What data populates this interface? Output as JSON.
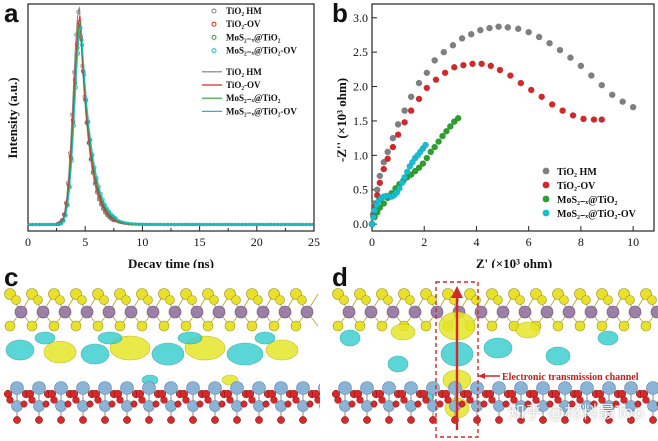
{
  "labels": {
    "a": "a",
    "b": "b",
    "c": "c",
    "d": "d"
  },
  "colors": {
    "tio2_hm": "#7f7f7f",
    "tio2_ov": "#d62728",
    "mos2_tio2": "#2ca02c",
    "mos2_tio2_ov": "#17becf",
    "yellow_lobe": "#e6e62a",
    "cyan_lobe": "#3fcfcf",
    "sulfur": "#e8e02a",
    "molybdenum": "#9b7fa6",
    "titanium": "#8ab4d6",
    "oxygen": "#d42a2a"
  },
  "chart_data": [
    {
      "type": "line",
      "panel": "a",
      "title": "",
      "xlabel": "Decay time (ns)",
      "ylabel": "Intensity (a.u.)",
      "xlim": [
        0,
        25
      ],
      "ylim": [
        0,
        1.05
      ],
      "xticks": [
        "0",
        "5",
        "10",
        "15",
        "20",
        "25"
      ],
      "series": [
        {
          "name": "TiO₂ HM",
          "style": "markers",
          "peak": 1.0,
          "center": 4.5,
          "rise": 0.55,
          "decay": 0.85
        },
        {
          "name": "TiO₂-OV",
          "style": "markers",
          "peak": 0.95,
          "center": 4.55,
          "rise": 0.55,
          "decay": 0.9
        },
        {
          "name": "MoS₂₋ₓ@TiO₂",
          "style": "markers",
          "peak": 0.93,
          "center": 4.6,
          "rise": 0.55,
          "decay": 0.95
        },
        {
          "name": "MoS₂₋ₓ@TiO₂-OV",
          "style": "markers",
          "peak": 0.9,
          "center": 4.65,
          "rise": 0.55,
          "decay": 1.0
        },
        {
          "name": "TiO₂ HM",
          "style": "line",
          "peak": 1.0,
          "center": 4.5,
          "rise": 0.55,
          "decay": 0.85
        },
        {
          "name": "TiO₂-OV",
          "style": "line",
          "peak": 0.96,
          "center": 4.55,
          "rise": 0.55,
          "decay": 0.9
        },
        {
          "name": "MoS₂₋ₓ@TiO₂",
          "style": "line",
          "peak": 0.94,
          "center": 4.6,
          "rise": 0.55,
          "decay": 0.95
        },
        {
          "name": "MoS₂₋ₓ@TiO₂-OV",
          "style": "line",
          "peak": 0.92,
          "center": 4.65,
          "rise": 0.55,
          "decay": 1.0
        }
      ],
      "baseline": 0.03
    },
    {
      "type": "scatter",
      "panel": "b",
      "title": "",
      "xlabel": "Z' (×10³ ohm)",
      "ylabel": "-Z'' (×10³ ohm)",
      "xlim": [
        0,
        10.8
      ],
      "ylim": [
        -0.1,
        3.2
      ],
      "xticks": [
        0,
        2,
        4,
        6,
        8,
        10
      ],
      "yticks": [
        "0.0",
        "0.5",
        "1.0",
        "1.5",
        "2.0",
        "2.5",
        "3.0"
      ],
      "series": [
        {
          "name": "TiO₂ HM",
          "x": [
            0.0,
            0.05,
            0.1,
            0.2,
            0.3,
            0.45,
            0.6,
            0.8,
            1.0,
            1.25,
            1.5,
            1.8,
            2.1,
            2.4,
            2.75,
            3.1,
            3.45,
            3.8,
            4.15,
            4.5,
            4.85,
            5.2,
            5.6,
            6.0,
            6.4,
            6.8,
            7.2,
            7.6,
            8.0,
            8.4,
            8.8,
            9.2,
            9.6,
            10.0
          ],
          "y": [
            0.0,
            0.15,
            0.3,
            0.5,
            0.7,
            0.9,
            1.05,
            1.25,
            1.45,
            1.65,
            1.85,
            2.05,
            2.2,
            2.38,
            2.5,
            2.6,
            2.7,
            2.76,
            2.82,
            2.85,
            2.87,
            2.86,
            2.84,
            2.79,
            2.72,
            2.63,
            2.53,
            2.42,
            2.3,
            2.16,
            2.02,
            1.88,
            1.78,
            1.7
          ]
        },
        {
          "name": "TiO₂-OV",
          "x": [
            0.0,
            0.05,
            0.1,
            0.2,
            0.3,
            0.45,
            0.6,
            0.8,
            1.0,
            1.25,
            1.5,
            1.8,
            2.1,
            2.45,
            2.8,
            3.15,
            3.5,
            3.85,
            4.2,
            4.55,
            4.9,
            5.3,
            5.7,
            6.1,
            6.5,
            6.9,
            7.3,
            7.7,
            8.1,
            8.5,
            8.8
          ],
          "y": [
            0.0,
            0.12,
            0.25,
            0.42,
            0.6,
            0.8,
            0.95,
            1.12,
            1.3,
            1.48,
            1.65,
            1.82,
            1.98,
            2.1,
            2.2,
            2.28,
            2.31,
            2.33,
            2.33,
            2.3,
            2.24,
            2.16,
            2.05,
            1.95,
            1.85,
            1.74,
            1.65,
            1.58,
            1.53,
            1.52,
            1.52
          ]
        },
        {
          "name": "MoS₂₋ₓ@TiO₂",
          "x": [
            0.0,
            0.1,
            0.2,
            0.3,
            0.45,
            0.6,
            0.75,
            0.9,
            1.05,
            1.2,
            1.35,
            1.5,
            1.65,
            1.8,
            1.95,
            2.1,
            2.25,
            2.4,
            2.55,
            2.7,
            2.85,
            3.0,
            3.15,
            3.3
          ],
          "y": [
            0.0,
            0.1,
            0.17,
            0.24,
            0.3,
            0.38,
            0.45,
            0.52,
            0.58,
            0.63,
            0.68,
            0.72,
            0.77,
            0.82,
            0.88,
            0.96,
            1.05,
            1.12,
            1.2,
            1.28,
            1.35,
            1.42,
            1.49,
            1.54
          ]
        },
        {
          "name": "MoS₂₋ₓ@TiO₂-OV",
          "x": [
            0.0,
            0.05,
            0.1,
            0.18,
            0.26,
            0.35,
            0.45,
            0.55,
            0.65,
            0.75,
            0.85,
            0.95,
            1.05,
            1.15,
            1.25,
            1.35,
            1.45,
            1.55,
            1.65,
            1.75,
            1.85,
            1.95,
            2.05
          ],
          "y": [
            0.0,
            0.1,
            0.2,
            0.28,
            0.34,
            0.38,
            0.4,
            0.41,
            0.41,
            0.4,
            0.42,
            0.46,
            0.52,
            0.6,
            0.68,
            0.76,
            0.84,
            0.9,
            0.96,
            1.0,
            1.05,
            1.1,
            1.15
          ]
        }
      ],
      "legend": "bottom-right"
    }
  ],
  "annotation_d": "Electronic transmission channel",
  "watermark": "知乎 @材料最Top"
}
